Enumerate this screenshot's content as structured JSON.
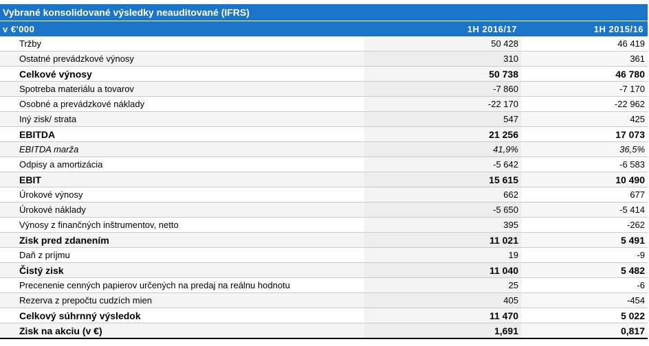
{
  "table": {
    "title": "Vybrané konsolidované výsledky neauditované (IFRS)",
    "header": {
      "label": "v €'000",
      "col1": "1H 2016/17",
      "col2": "1H 2015/16"
    },
    "rows": [
      {
        "label": "Tržby",
        "v1": "50 428",
        "v2": "46 419"
      },
      {
        "label": "Ostatné prevádzkové výnosy",
        "v1": "310",
        "v2": "361"
      },
      {
        "label": "Celkové výnosy",
        "v1": "50 738",
        "v2": "46 780"
      },
      {
        "label": "Spotreba materiálu a tovarov",
        "v1": "-7 860",
        "v2": "-7 170"
      },
      {
        "label": "Osobné a prevádzkové náklady",
        "v1": "-22 170",
        "v2": "-22 962"
      },
      {
        "label": "Iný zisk/ strata",
        "v1": "547",
        "v2": "425"
      },
      {
        "label": "EBITDA",
        "v1": "21 256",
        "v2": "17 073"
      },
      {
        "label": "EBITDA marža",
        "v1": "41,9%",
        "v2": "36,5%"
      },
      {
        "label": "Odpisy a amortizácia",
        "v1": "-5 642",
        "v2": "-6 583"
      },
      {
        "label": "EBIT",
        "v1": "15 615",
        "v2": "10 490"
      },
      {
        "label": "Úrokové výnosy",
        "v1": "662",
        "v2": "677"
      },
      {
        "label": "Úrokové náklady",
        "v1": "-5 650",
        "v2": "-5 414"
      },
      {
        "label": "Výnosy z finančných inštrumentov, netto",
        "v1": "395",
        "v2": "-262"
      },
      {
        "label": "Zisk pred zdanením",
        "v1": "11 021",
        "v2": "5 491"
      },
      {
        "label": "Daň z príjmu",
        "v1": "19",
        "v2": "-9"
      },
      {
        "label": "Čistý zisk",
        "v1": "11 040",
        "v2": "5 482"
      },
      {
        "label": "Precenenie cenných papierov určených na predaj  na reálnu hodnotu",
        "v1": "25",
        "v2": "-6"
      },
      {
        "label": "Rezerva z prepočtu cudzích mien",
        "v1": "405",
        "v2": "-454"
      },
      {
        "label": "Celkový súhrnný výsledok",
        "v1": "11 470",
        "v2": "5 022"
      },
      {
        "label": "Zisk na akciu (v €)",
        "v1": "1,691",
        "v2": "0,817"
      }
    ]
  }
}
